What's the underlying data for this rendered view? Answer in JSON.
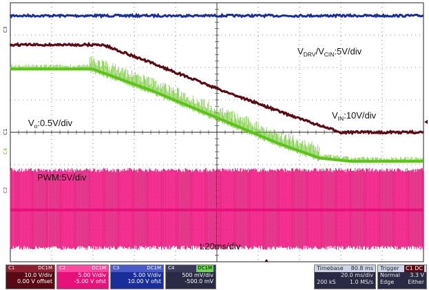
{
  "chart_data": {
    "type": "line",
    "x_range": [
      0,
      200
    ],
    "x_unit": "ms",
    "y_range": [
      -4,
      4
    ],
    "grid": true,
    "annotations": {
      "vdrv": {
        "main": "V",
        "sub1": "DRV",
        "mid": "/V",
        "sub2": "CIN",
        "tail": ":5V/div"
      },
      "vin": {
        "main": "V",
        "sub": "IN",
        "tail": ":10V/div"
      },
      "vo": {
        "main": "V",
        "sub": "o",
        "tail": ":0.5V/div"
      },
      "pwm": "PWM:5V/div",
      "time": "t:20ms/div"
    },
    "series": [
      {
        "name": "C1",
        "color": "#5a0a14",
        "x": [
          0,
          45,
          70,
          100,
          130,
          150,
          160,
          200
        ],
        "y": [
          2.7,
          2.7,
          2.1,
          1.35,
          0.65,
          0.2,
          0.0,
          0.0
        ]
      },
      {
        "name": "C2",
        "color": "#e8107a",
        "x": [
          0,
          200
        ],
        "y": [
          -2.4,
          -2.4
        ]
      },
      {
        "name": "C3",
        "color": "#1a2e9a",
        "x": [
          0,
          200
        ],
        "y": [
          3.6,
          3.6
        ]
      },
      {
        "name": "C4",
        "color": "#5ec21a",
        "x": [
          0,
          40,
          70,
          100,
          130,
          150,
          165,
          200
        ],
        "y": [
          1.95,
          1.95,
          1.25,
          0.45,
          -0.35,
          -0.8,
          -0.9,
          -0.9
        ]
      }
    ]
  },
  "status": {
    "ch1": {
      "label": "C1",
      "mode": "DC1M",
      "scale": "10.0 V/div",
      "offset": "0.00 V offset"
    },
    "ch2": {
      "label": "C2",
      "mode": "DC1M",
      "scale": "5.00 V/div",
      "offset": "-5.00 V ofst"
    },
    "ch3": {
      "label": "C3",
      "mode": "DC1M",
      "scale": "5.00 V/div",
      "offset": "10.00 V ofst"
    },
    "ch4": {
      "label": "C4",
      "mode": "DC1M",
      "scale": "500 mV/div",
      "offset": "-500.0 mV"
    },
    "timebase": {
      "label": "Timebase",
      "value": "80.8 ms",
      "rate": "20.0 ms/div",
      "samples": "200 kS",
      "srate": "1.0 MS/s"
    },
    "trigger": {
      "label": "Trigger",
      "channel": "C1 DC",
      "mode": "Normal",
      "level": "3.3 V",
      "type": "Edge",
      "slope": "Either"
    }
  },
  "colors": {
    "ch1": "#5a0a14",
    "ch2": "#e8107a",
    "ch3": "#1a2e9a",
    "ch4": "#5ec21a",
    "grid": "#222222"
  }
}
